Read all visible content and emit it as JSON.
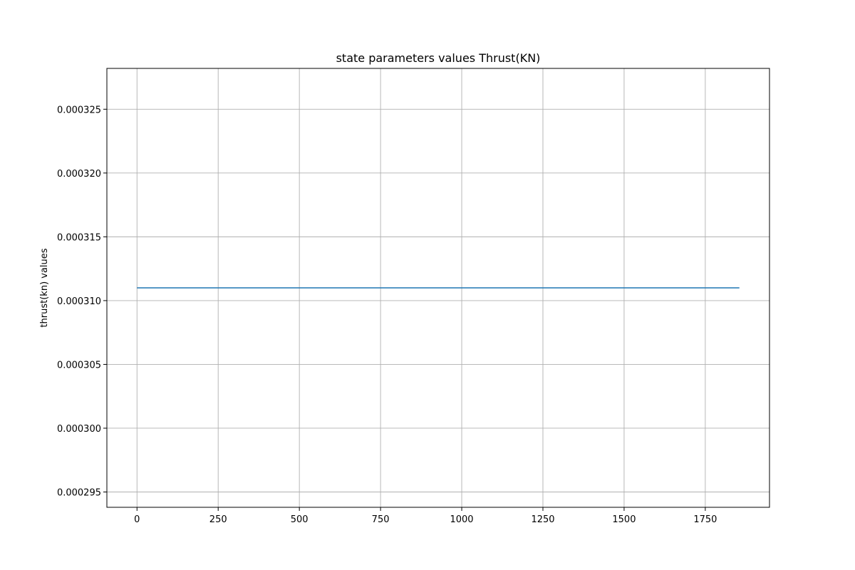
{
  "chart_data": {
    "type": "line",
    "title": "state parameters values Thrust(KN)",
    "xlabel": "",
    "ylabel": "thrust(kn) values",
    "xlim": [
      -92.75,
      1947.75
    ],
    "ylim": [
      0.0002938,
      0.0003282
    ],
    "x_ticks": [
      0,
      250,
      500,
      750,
      1000,
      1250,
      1500,
      1750
    ],
    "x_tick_labels": [
      "0",
      "250",
      "500",
      "750",
      "1000",
      "1250",
      "1500",
      "1750"
    ],
    "y_ticks": [
      0.000295,
      0.0003,
      0.000305,
      0.00031,
      0.000315,
      0.00032,
      0.000325
    ],
    "y_tick_labels": [
      "0.000295",
      "0.000300",
      "0.000305",
      "0.000310",
      "0.000315",
      "0.000320",
      "0.000325"
    ],
    "grid": true,
    "series": [
      {
        "x": [
          0,
          1855
        ],
        "y": [
          0.000311,
          0.000311
        ],
        "color": "#1f77b4"
      }
    ]
  }
}
